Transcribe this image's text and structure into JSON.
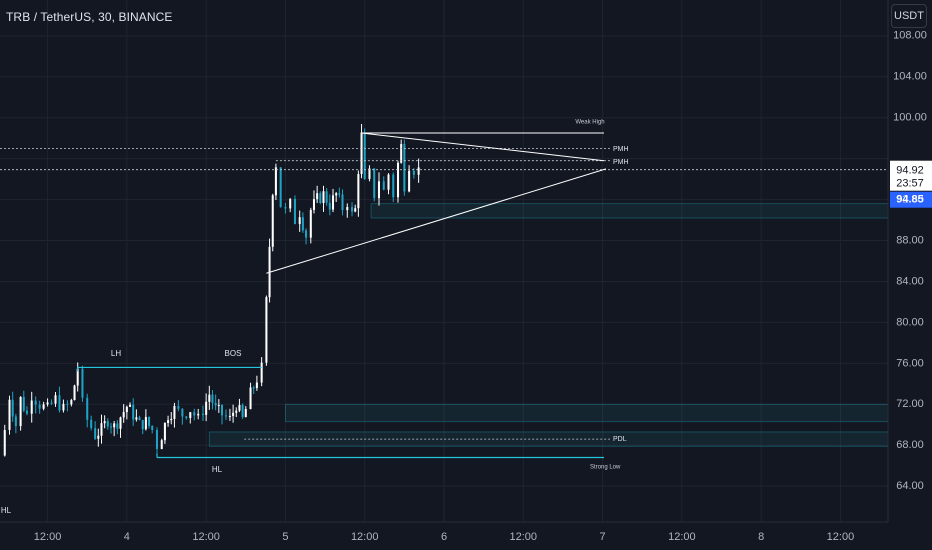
{
  "header": {
    "symbol_title": "TRB / TetherUS, 30, BINANCE",
    "currency_button": "USDT"
  },
  "colors": {
    "background": "#131722",
    "grid": "#1f2430",
    "axis_text": "#b2b5be",
    "up_candle": "#ffffff",
    "down_candle": "#1fa3c4",
    "cyan_line": "#26c6da",
    "pattern_line": "#ffffff",
    "price_badge": "#2962ff",
    "level_line": "#c8cbd3"
  },
  "chart_data": {
    "type": "candlestick",
    "symbol": "TRB / TetherUS",
    "interval": "30",
    "exchange": "BINANCE",
    "y_ticks": [
      108.0,
      104.0,
      100.0,
      96.0,
      92.0,
      88.0,
      84.0,
      80.0,
      76.0,
      72.0,
      68.0,
      64.0
    ],
    "y_tick_labels": [
      "108.00",
      "104.00",
      "100.00",
      "96.00",
      "92.00",
      "88.00",
      "84.00",
      "80.00",
      "76.00",
      "72.00",
      "68.00",
      "64.00"
    ],
    "ylim": [
      60.5,
      111.5
    ],
    "x_ticks": [
      {
        "label": "12:00",
        "day": 3.5
      },
      {
        "label": "4",
        "day": 4.0
      },
      {
        "label": "12:00",
        "day": 4.5
      },
      {
        "label": "5",
        "day": 5.0
      },
      {
        "label": "12:00",
        "day": 5.5
      },
      {
        "label": "6",
        "day": 6.0
      },
      {
        "label": "12:00",
        "day": 6.5
      },
      {
        "label": "7",
        "day": 7.0
      },
      {
        "label": "12:00",
        "day": 7.5
      },
      {
        "label": "8",
        "day": 8.0
      },
      {
        "label": "12:00",
        "day": 8.5
      }
    ],
    "xlim": [
      3.2,
      8.8
    ],
    "last_price": "94.92",
    "countdown": "23:57",
    "badge_price": "94.85",
    "candle_path": [
      [
        3.2,
        67.0
      ],
      [
        3.23,
        69.5
      ],
      [
        3.26,
        72.8
      ],
      [
        3.3,
        70.0
      ],
      [
        3.33,
        72.5
      ],
      [
        3.37,
        71.0
      ],
      [
        3.4,
        73.0
      ],
      [
        3.45,
        72.0
      ],
      [
        3.5,
        71.5
      ],
      [
        3.55,
        72.5
      ],
      [
        3.6,
        71.5
      ],
      [
        3.65,
        72.2
      ],
      [
        3.69,
        75.6
      ],
      [
        3.72,
        72.0
      ],
      [
        3.75,
        70.5
      ],
      [
        3.8,
        69.0
      ],
      [
        3.84,
        69.5
      ],
      [
        3.88,
        70.5
      ],
      [
        3.92,
        69.8
      ],
      [
        3.96,
        70.8
      ],
      [
        4.0,
        71.8
      ],
      [
        4.04,
        71.0
      ],
      [
        4.08,
        70.0
      ],
      [
        4.12,
        70.3
      ],
      [
        4.16,
        69.5
      ],
      [
        4.19,
        68.0
      ],
      [
        4.22,
        69.0
      ],
      [
        4.26,
        71.0
      ],
      [
        4.3,
        71.5
      ],
      [
        4.35,
        71.0
      ],
      [
        4.4,
        71.5
      ],
      [
        4.45,
        70.5
      ],
      [
        4.48,
        71.5
      ],
      [
        4.52,
        73.0
      ],
      [
        4.56,
        71.5
      ],
      [
        4.6,
        71.0
      ],
      [
        4.65,
        70.5
      ],
      [
        4.69,
        72.0
      ],
      [
        4.73,
        70.5
      ],
      [
        4.75,
        71.5
      ],
      [
        4.78,
        73.0
      ],
      [
        4.82,
        74.5
      ],
      [
        4.85,
        75.5
      ],
      [
        4.88,
        82.0
      ],
      [
        4.9,
        87.5
      ],
      [
        4.92,
        93.0
      ],
      [
        4.94,
        95.5
      ],
      [
        4.97,
        91.5
      ],
      [
        5.0,
        90.8
      ],
      [
        5.03,
        91.5
      ],
      [
        5.06,
        90.0
      ],
      [
        5.09,
        90.8
      ],
      [
        5.13,
        88.5
      ],
      [
        5.16,
        91.0
      ],
      [
        5.2,
        92.0
      ],
      [
        5.24,
        92.5
      ],
      [
        5.28,
        91.5
      ],
      [
        5.32,
        92.5
      ],
      [
        5.36,
        91.2
      ],
      [
        5.39,
        91.8
      ],
      [
        5.42,
        90.5
      ],
      [
        5.44,
        91.0
      ],
      [
        5.46,
        95.0
      ],
      [
        5.48,
        98.2
      ],
      [
        5.5,
        93.5
      ],
      [
        5.53,
        94.5
      ],
      [
        5.56,
        92.5
      ],
      [
        5.59,
        94.0
      ],
      [
        5.62,
        92.8
      ],
      [
        5.65,
        94.5
      ],
      [
        5.68,
        92.5
      ],
      [
        5.71,
        95.5
      ],
      [
        5.73,
        97.2
      ],
      [
        5.75,
        93.5
      ],
      [
        5.78,
        95.5
      ],
      [
        5.81,
        95.0
      ],
      [
        5.84,
        94.9
      ]
    ],
    "annotations": [
      {
        "text": "LH",
        "kind": "swing-label"
      },
      {
        "text": "BOS",
        "kind": "break-of-structure"
      },
      {
        "text": "HL",
        "kind": "swing-label"
      },
      {
        "text": "HL",
        "kind": "swing-label"
      },
      {
        "text": "Weak High",
        "kind": "level-label"
      },
      {
        "text": "PMH",
        "kind": "level-label"
      },
      {
        "text": "PMH",
        "kind": "level-label"
      },
      {
        "text": "PDL",
        "kind": "level-label"
      },
      {
        "text": "Strong Low",
        "kind": "level-label"
      }
    ],
    "levels": {
      "weak_high": 98.5,
      "pmh_upper": 97.0,
      "pmh_lower": 95.8,
      "bos": 75.6,
      "pdl": 68.6,
      "strong_low": 66.8,
      "current_price_line": 94.92
    },
    "zones": [
      {
        "name": "supply-demand-zone-upper",
        "low": 90.2,
        "high": 91.6
      },
      {
        "name": "demand-zone-lower-a",
        "low": 70.3,
        "high": 72.0
      },
      {
        "name": "demand-zone-lower-b",
        "low": 67.9,
        "high": 69.3
      }
    ],
    "grid": true
  }
}
